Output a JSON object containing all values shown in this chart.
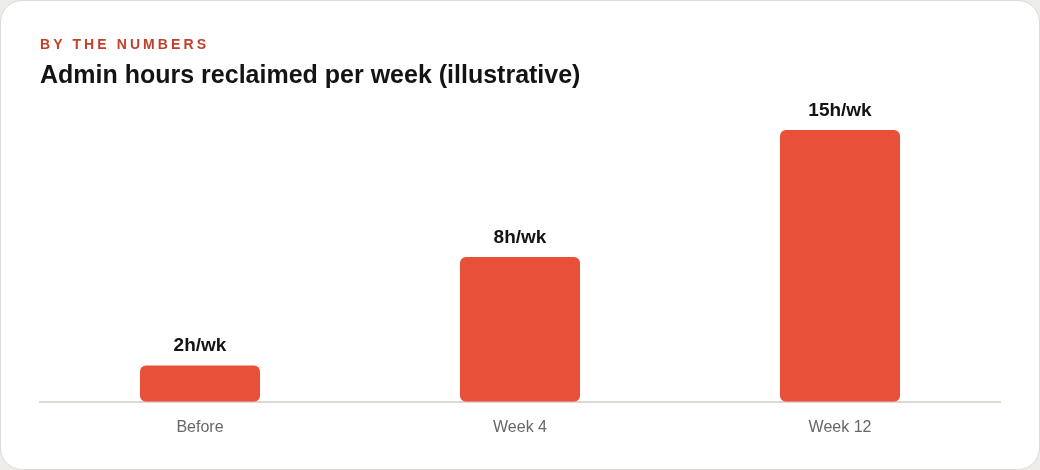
{
  "chart_data": {
    "type": "bar",
    "subtitle": "BY THE NUMBERS",
    "title": "Admin hours reclaimed per week (illustrative)",
    "categories": [
      "Before",
      "Week 4",
      "Week 12"
    ],
    "values": [
      2,
      8,
      15
    ],
    "value_labels": [
      "2h/wk",
      "8h/wk",
      "15h/wk"
    ],
    "color": "#e8503a"
  }
}
